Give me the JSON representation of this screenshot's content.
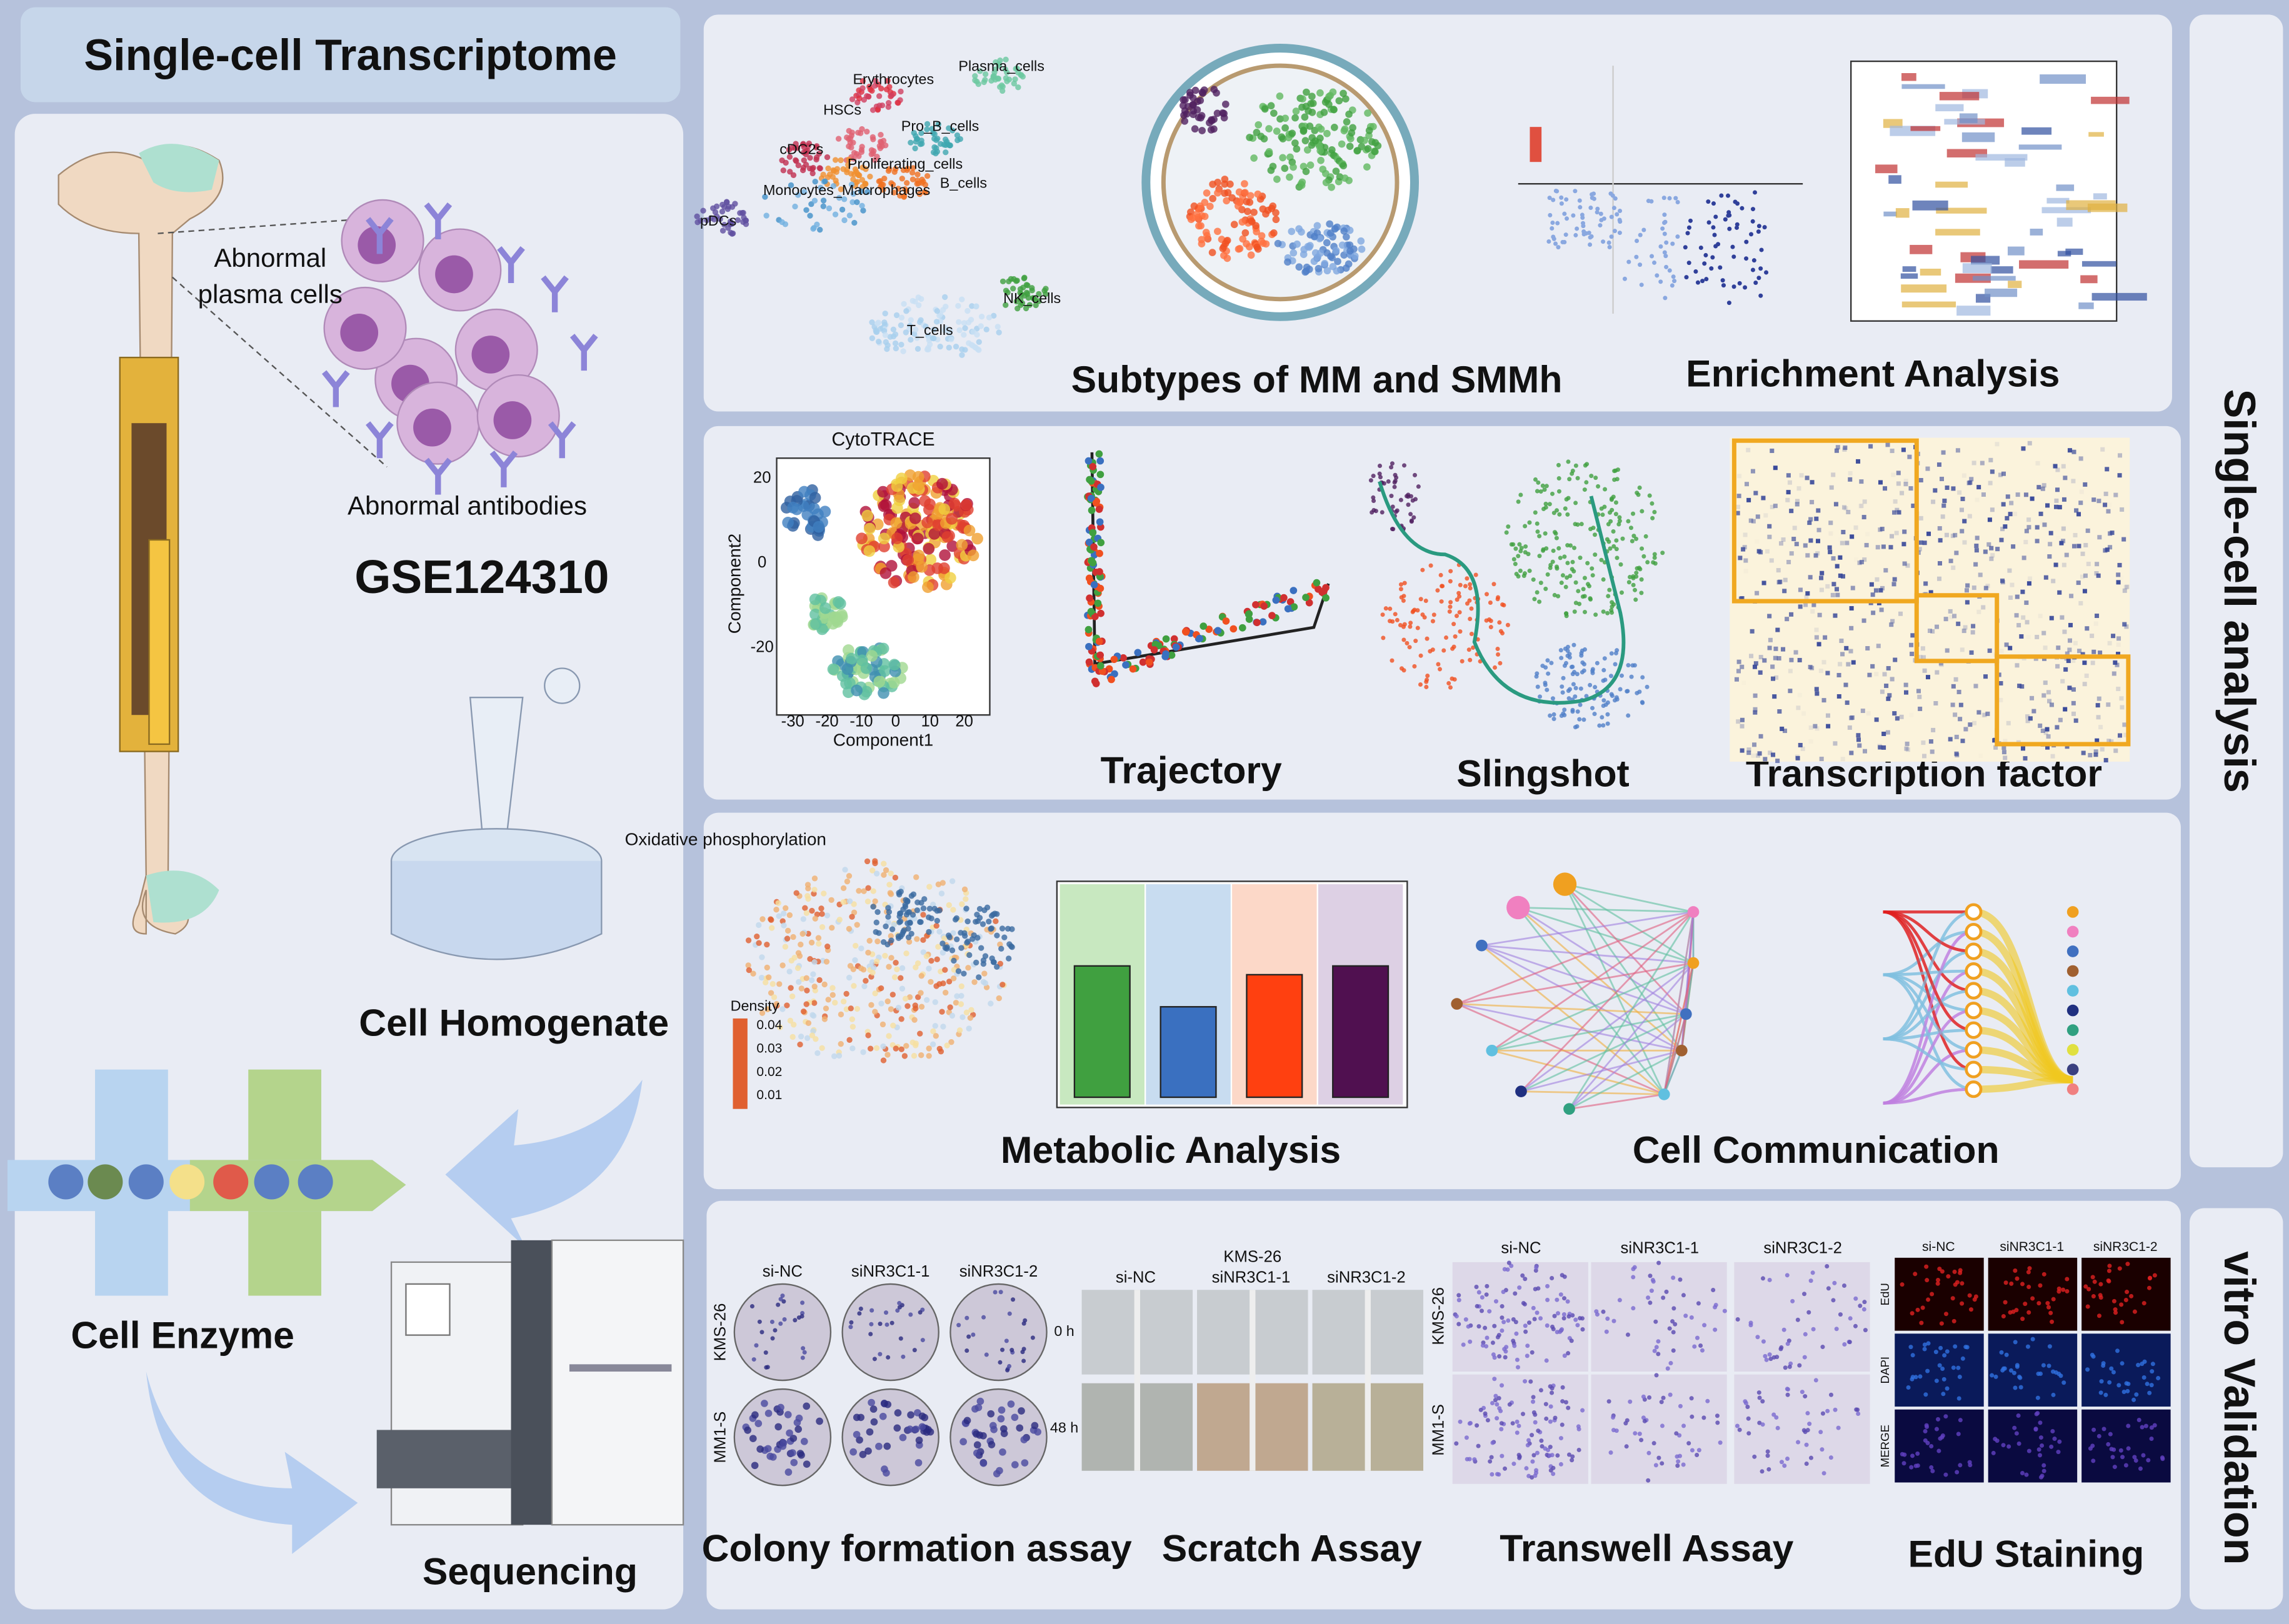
{
  "left": {
    "title": "Single-cell Transcriptome",
    "cells_label": [
      "Abnormal",
      "plasma cells"
    ],
    "antibodies": "Abnormal antibodies",
    "dataset": "GSE124310",
    "homogenate": "Cell Homogenate",
    "enzyme": "Cell Enzyme",
    "sequencing": "Sequencing"
  },
  "side": {
    "analysis": "Single-cell analysis",
    "validation": "vitro Validation"
  },
  "panels": {
    "subtypes": "Subtypes of MM and SMMh",
    "enrichment": "Enrichment Analysis",
    "trajectory": "Trajectory",
    "slingshot": "Slingshot",
    "tf": "Transcription factor",
    "metabolic": "Metabolic Analysis",
    "communication": "Cell Communication",
    "colony": "Colony formation assay",
    "scratch": "Scratch Assay",
    "transwell": "Transwell Assay",
    "edu": "EdU Staining"
  },
  "umap": {
    "labels": [
      "Erythrocytes",
      "Plasma_cells",
      "HSCs",
      "Pro_B_cells",
      "cDC2s",
      "Proliferating_cells",
      "B_cells",
      "Monocytes_Macrophages",
      "pDCs",
      "NK_cells",
      "T_cells"
    ]
  },
  "cytotrace": {
    "title": "CytoTRACE",
    "xlabel": "Component1",
    "ylabel": "Component2",
    "xticks": [
      "-30",
      "-20",
      "-10",
      "0",
      "10",
      "20"
    ],
    "yticks": [
      "20",
      "0",
      "-20"
    ]
  },
  "oxphos": {
    "title": "Oxidative phosphorylation",
    "legend": "Density",
    "levels": [
      "0.04",
      "0.03",
      "0.02",
      "0.01"
    ]
  },
  "assays": {
    "colony_cols": [
      "si-NC",
      "siNR3C1-1",
      "siNR3C1-2"
    ],
    "colony_rows": [
      "KMS-26",
      "MM1-S"
    ],
    "times": [
      "0 h",
      "48 h"
    ],
    "scratch_title": "KMS-26",
    "scratch_cols": [
      "si-NC",
      "siNR3C1-1",
      "siNR3C1-2"
    ],
    "transwell_cols": [
      "si-NC",
      "siNR3C1-1",
      "siNR3C1-2"
    ],
    "transwell_rows": [
      "KMS-26",
      "MM1-S"
    ],
    "edu_cols": [
      "si-NC",
      "siNR3C1-1",
      "siNR3C1-2"
    ],
    "edu_rows": [
      "EdU",
      "DAPI",
      "MERGE"
    ]
  }
}
